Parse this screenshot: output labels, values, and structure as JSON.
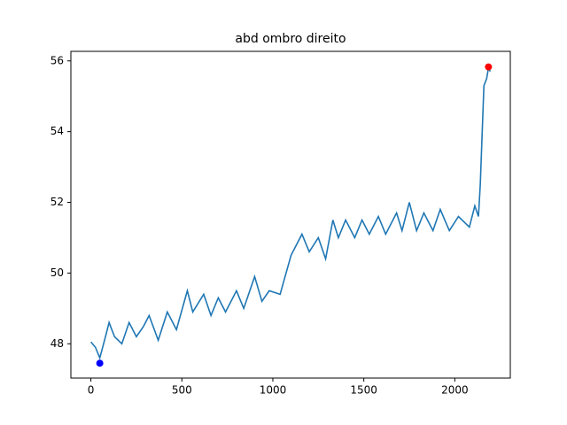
{
  "chart_data": {
    "type": "line",
    "title": "abd ombro direito",
    "x": [
      0,
      25,
      49,
      75,
      100,
      130,
      170,
      210,
      250,
      290,
      320,
      370,
      420,
      470,
      530,
      560,
      620,
      660,
      700,
      740,
      800,
      840,
      900,
      940,
      980,
      1040,
      1100,
      1160,
      1200,
      1250,
      1290,
      1330,
      1360,
      1400,
      1450,
      1490,
      1530,
      1580,
      1620,
      1680,
      1710,
      1750,
      1790,
      1830,
      1880,
      1920,
      1970,
      2020,
      2080,
      2110,
      2130,
      2140,
      2160,
      2175,
      2185,
      2195
    ],
    "series": [
      {
        "color": "#1f77b4",
        "values": [
          48.05,
          47.9,
          47.6,
          48.1,
          48.6,
          48.2,
          48.0,
          48.6,
          48.2,
          48.5,
          48.8,
          48.1,
          48.9,
          48.4,
          49.5,
          48.9,
          49.4,
          48.8,
          49.3,
          48.9,
          49.5,
          49.0,
          49.9,
          49.2,
          49.5,
          49.4,
          50.5,
          51.1,
          50.6,
          51.0,
          50.4,
          51.5,
          51.0,
          51.5,
          51.0,
          51.5,
          51.1,
          51.6,
          51.1,
          51.7,
          51.2,
          52.0,
          51.2,
          51.7,
          51.2,
          51.8,
          51.2,
          51.6,
          51.3,
          51.9,
          51.6,
          52.5,
          55.3,
          55.5,
          55.8,
          55.7
        ]
      }
    ],
    "markers": [
      {
        "x": 49,
        "y": 47.45,
        "color": "blue"
      },
      {
        "x": 2185,
        "y": 55.83,
        "color": "red"
      }
    ],
    "xlim": [
      -110,
      2305
    ],
    "xticks": [
      0,
      500,
      1000,
      1500,
      2000
    ],
    "ylim": [
      47.03,
      56.27
    ],
    "yticks": [
      48,
      50,
      52,
      54,
      56
    ]
  }
}
